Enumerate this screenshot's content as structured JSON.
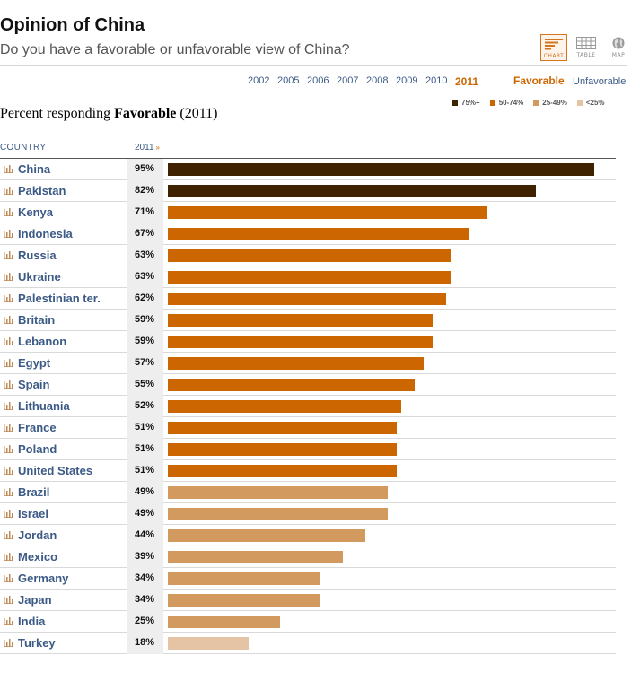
{
  "header": {
    "title": "Opinion of China",
    "subtitle": "Do you have a favorable or unfavorable view of China?"
  },
  "view_switch": [
    {
      "label": "CHART",
      "icon": "bar-chart-icon",
      "active": true
    },
    {
      "label": "TABLE",
      "icon": "table-icon",
      "active": false
    },
    {
      "label": "MAP",
      "icon": "globe-icon",
      "active": false
    }
  ],
  "years": [
    "2002",
    "2005",
    "2006",
    "2007",
    "2008",
    "2009",
    "2010",
    "2011"
  ],
  "selected_year": "2011",
  "modes": {
    "favorable": "Favorable",
    "unfavorable": "Unfavorable"
  },
  "legend": [
    {
      "label": "75%+",
      "color": "#3f2300"
    },
    {
      "label": "50-74%",
      "color": "#cc6600"
    },
    {
      "label": "25-49%",
      "color": "#d39a5f"
    },
    {
      "label": "<25%",
      "color": "#e5c4a5"
    }
  ],
  "table": {
    "col_country": "COUNTRY",
    "col_year": "2011",
    "sort_indicator": "»"
  },
  "chart_data": {
    "type": "bar",
    "title_prefix": "Percent responding ",
    "title_bold": "Favorable",
    "title_suffix": " (2011)",
    "categories": [
      "China",
      "Pakistan",
      "Kenya",
      "Indonesia",
      "Russia",
      "Ukraine",
      "Palestinian ter.",
      "Britain",
      "Lebanon",
      "Egypt",
      "Spain",
      "Lithuania",
      "France",
      "Poland",
      "United States",
      "Brazil",
      "Israel",
      "Jordan",
      "Mexico",
      "Germany",
      "Japan",
      "India",
      "Turkey"
    ],
    "values": [
      95,
      82,
      71,
      67,
      63,
      63,
      62,
      59,
      59,
      57,
      55,
      52,
      51,
      51,
      51,
      49,
      49,
      44,
      39,
      34,
      34,
      25,
      18
    ],
    "value_suffix": "%",
    "xlim": [
      0,
      100
    ],
    "orientation": "horizontal",
    "grid": false
  }
}
